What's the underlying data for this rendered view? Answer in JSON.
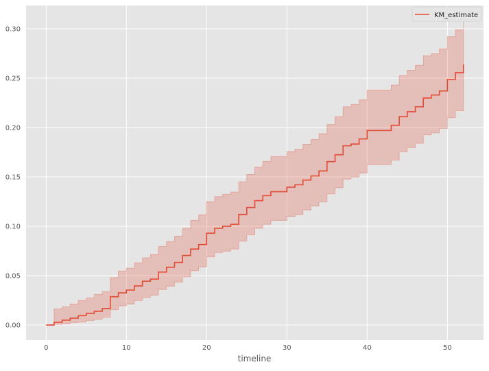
{
  "chart_data": {
    "type": "line",
    "style": "step (post) with shaded confidence band",
    "xlabel": "timeline",
    "ylabel": "",
    "xlim": [
      -2.5,
      54.5
    ],
    "ylim": [
      -0.0153,
      0.3236
    ],
    "xticks": [
      0,
      10,
      20,
      30,
      40,
      50
    ],
    "yticks": [
      0.0,
      0.05,
      0.1,
      0.15,
      0.2,
      0.25,
      0.3
    ],
    "ytick_labels": [
      "0.00",
      "0.05",
      "0.10",
      "0.15",
      "0.20",
      "0.25",
      "0.30"
    ],
    "xtick_labels": [
      "0",
      "10",
      "20",
      "30",
      "40",
      "50"
    ],
    "grid": true,
    "legend_position": "top-right",
    "colors": {
      "series": "#E24A33",
      "plot_background": "#E5E5E5",
      "grid": "#FFFFFF"
    },
    "x": [
      0,
      1,
      2,
      3,
      4,
      5,
      6,
      7,
      8,
      9,
      10,
      11,
      12,
      13,
      14,
      15,
      16,
      17,
      18,
      19,
      20,
      21,
      22,
      23,
      24,
      25,
      26,
      27,
      28,
      29,
      30,
      31,
      32,
      33,
      34,
      35,
      36,
      37,
      38,
      39,
      40,
      41,
      42,
      43,
      44,
      45,
      46,
      47,
      48,
      49,
      50,
      51,
      52
    ],
    "series": [
      {
        "name": "KM_estimate",
        "values": [
          0,
          0.0028,
          0.005,
          0.007,
          0.0095,
          0.0118,
          0.014,
          0.0167,
          0.0287,
          0.0326,
          0.0354,
          0.0396,
          0.0444,
          0.0465,
          0.0537,
          0.0585,
          0.0634,
          0.0704,
          0.0769,
          0.0815,
          0.093,
          0.098,
          0.1,
          0.102,
          0.112,
          0.119,
          0.126,
          0.131,
          0.135,
          0.135,
          0.1396,
          0.142,
          0.1468,
          0.151,
          0.156,
          0.1655,
          0.1724,
          0.1815,
          0.1833,
          0.1885,
          0.197,
          0.197,
          0.197,
          0.2023,
          0.211,
          0.216,
          0.221,
          0.2299,
          0.2329,
          0.237,
          0.2486,
          0.2556,
          0.264
        ],
        "upper": [
          0,
          0.0164,
          0.0185,
          0.0213,
          0.025,
          0.0275,
          0.031,
          0.0338,
          0.048,
          0.0546,
          0.0576,
          0.063,
          0.068,
          0.0715,
          0.0796,
          0.0845,
          0.09,
          0.098,
          0.106,
          0.1116,
          0.125,
          0.13,
          0.1324,
          0.1347,
          0.145,
          0.1525,
          0.16,
          0.1657,
          0.1706,
          0.1706,
          0.1757,
          0.178,
          0.183,
          0.188,
          0.1937,
          0.203,
          0.211,
          0.221,
          0.2234,
          0.228,
          0.238,
          0.238,
          0.238,
          0.243,
          0.2525,
          0.258,
          0.263,
          0.2727,
          0.2748,
          0.2797,
          0.292,
          0.299,
          0.309
        ],
        "lower": [
          0,
          0.0007,
          0.0014,
          0.0025,
          0.003,
          0.0046,
          0.0058,
          0.008,
          0.0155,
          0.0194,
          0.0213,
          0.0248,
          0.028,
          0.0303,
          0.036,
          0.0394,
          0.0435,
          0.0488,
          0.055,
          0.0588,
          0.069,
          0.0734,
          0.0748,
          0.0769,
          0.085,
          0.0914,
          0.098,
          0.102,
          0.106,
          0.106,
          0.11,
          0.112,
          0.1165,
          0.1206,
          0.1248,
          0.1328,
          0.139,
          0.1477,
          0.1498,
          0.154,
          0.1627,
          0.1627,
          0.1627,
          0.167,
          0.1755,
          0.1797,
          0.184,
          0.1926,
          0.1946,
          0.199,
          0.21,
          0.217,
          0.217
        ]
      }
    ]
  }
}
